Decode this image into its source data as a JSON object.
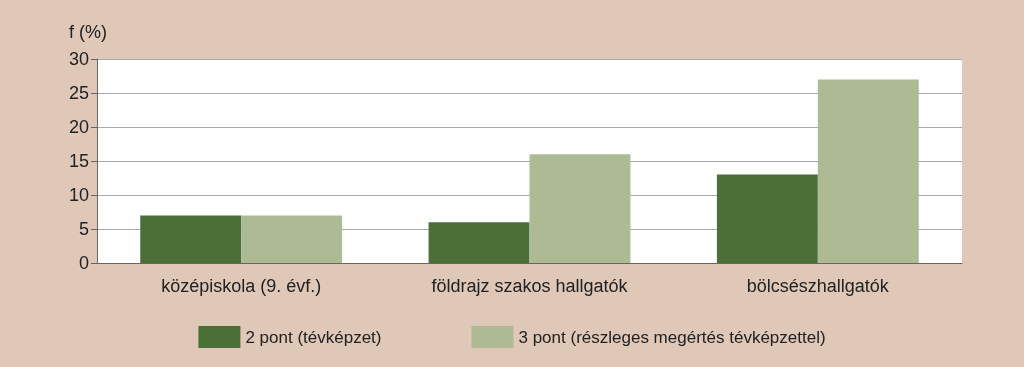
{
  "chart_data": {
    "type": "bar",
    "ylabel": "f (%)",
    "categories": [
      "középiskola (9. évf.)",
      "földrajz szakos hallgatók",
      "bölcsészhallgatók"
    ],
    "series": [
      {
        "name": "2 pont (tévképzet)",
        "color": "#4a6f37",
        "values": [
          7,
          6,
          13
        ]
      },
      {
        "name": "3 pont (részleges megértés tévképzettel)",
        "color": "#adba93",
        "values": [
          7,
          16,
          27
        ]
      }
    ],
    "ylim": [
      0,
      30
    ],
    "yticks": [
      0,
      5,
      10,
      15,
      20,
      25,
      30
    ],
    "grid": "y",
    "legend": "bottom"
  }
}
